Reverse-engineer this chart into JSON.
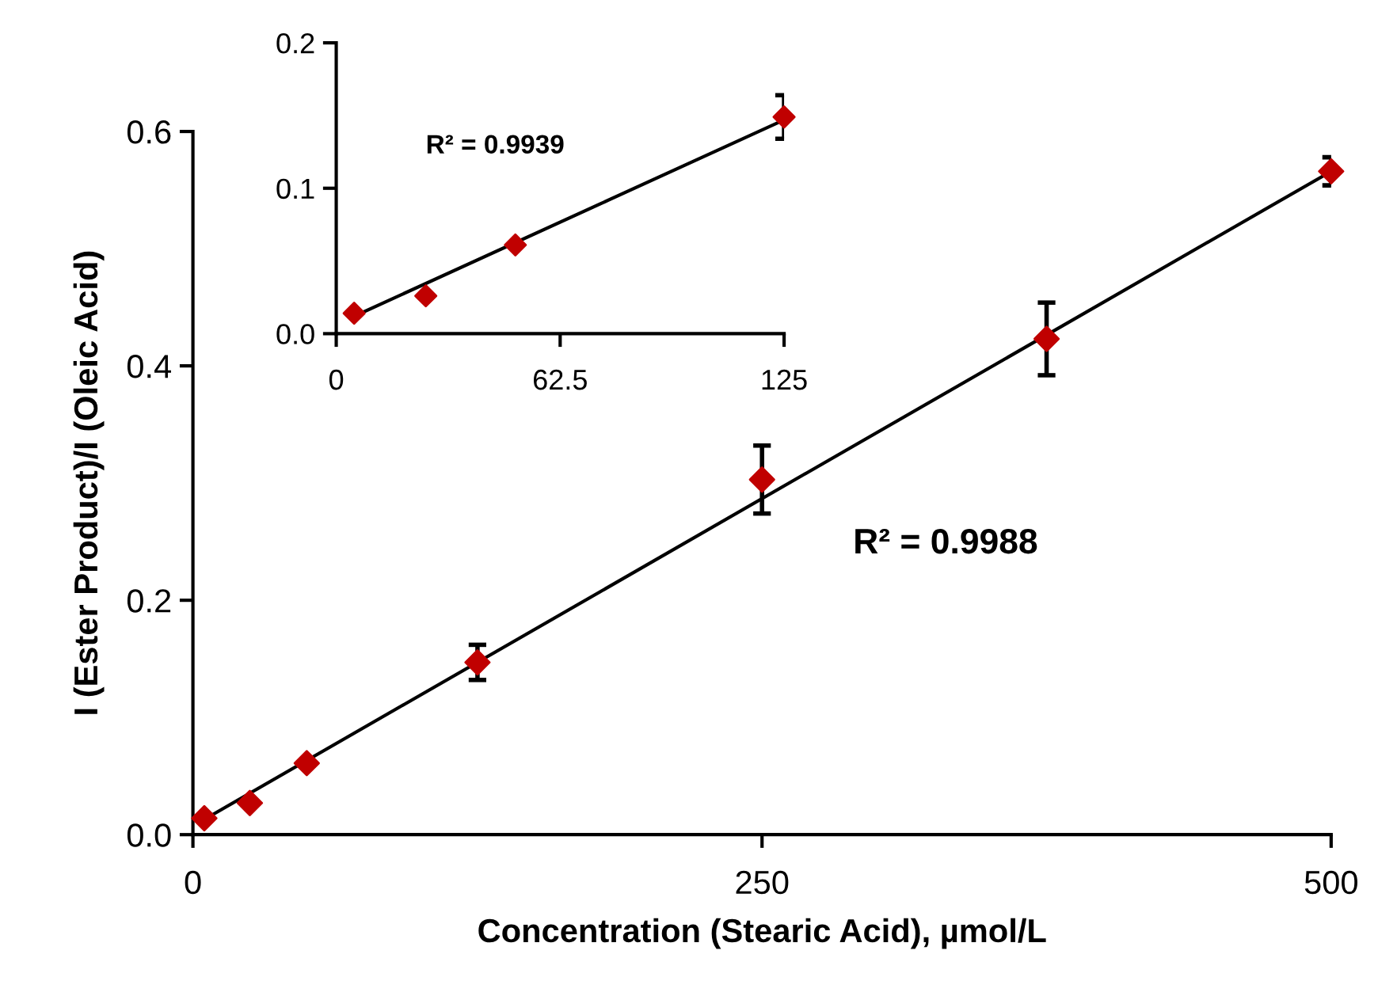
{
  "chart_data": [
    {
      "type": "scatter",
      "xlabel": "Concentration (Stearic Acid), µmol/L",
      "ylabel": "I (Ester Product)/I (Oleic Acid)",
      "xlim": [
        0,
        500
      ],
      "ylim": [
        0,
        0.6
      ],
      "xticks": [
        0,
        250,
        500
      ],
      "yticks": [
        {
          "value": 0,
          "label": "0.0"
        },
        {
          "value": 0.2,
          "label": "0.2"
        },
        {
          "value": 0.4,
          "label": "0.4"
        },
        {
          "value": 0.6,
          "label": "0.6"
        }
      ],
      "grid": false,
      "annotations": [
        "R² = 0.9988"
      ],
      "series": [
        {
          "marker": "diamond",
          "color": "#c00000",
          "x": [
            5,
            25,
            50,
            125,
            250,
            375,
            500
          ],
          "values": [
            0.014,
            0.027,
            0.061,
            0.147,
            0.303,
            0.423,
            0.566
          ],
          "errors": [
            null,
            null,
            null,
            0.015,
            0.029,
            0.031,
            0.012
          ]
        },
        {
          "type": "line",
          "color": "#000000",
          "x": [
            5,
            500
          ],
          "values": [
            0.013,
            0.566
          ]
        }
      ]
    },
    {
      "type": "scatter",
      "xlim": [
        0,
        125
      ],
      "ylim": [
        0,
        0.2
      ],
      "xticks": [
        0,
        62.5,
        125
      ],
      "yticks": [
        {
          "value": 0,
          "label": "0.0"
        },
        {
          "value": 0.1,
          "label": "0.1"
        },
        {
          "value": 0.2,
          "label": "0.2"
        }
      ],
      "grid": false,
      "annotations": [
        "R² = 0.9939"
      ],
      "series": [
        {
          "marker": "diamond",
          "color": "#c00000",
          "x": [
            5,
            25,
            50,
            125
          ],
          "values": [
            0.014,
            0.026,
            0.061,
            0.149
          ],
          "errors": [
            null,
            null,
            null,
            0.015
          ]
        },
        {
          "type": "line",
          "color": "#000000",
          "x": [
            5,
            125
          ],
          "values": [
            0.012,
            0.147
          ]
        }
      ]
    }
  ]
}
